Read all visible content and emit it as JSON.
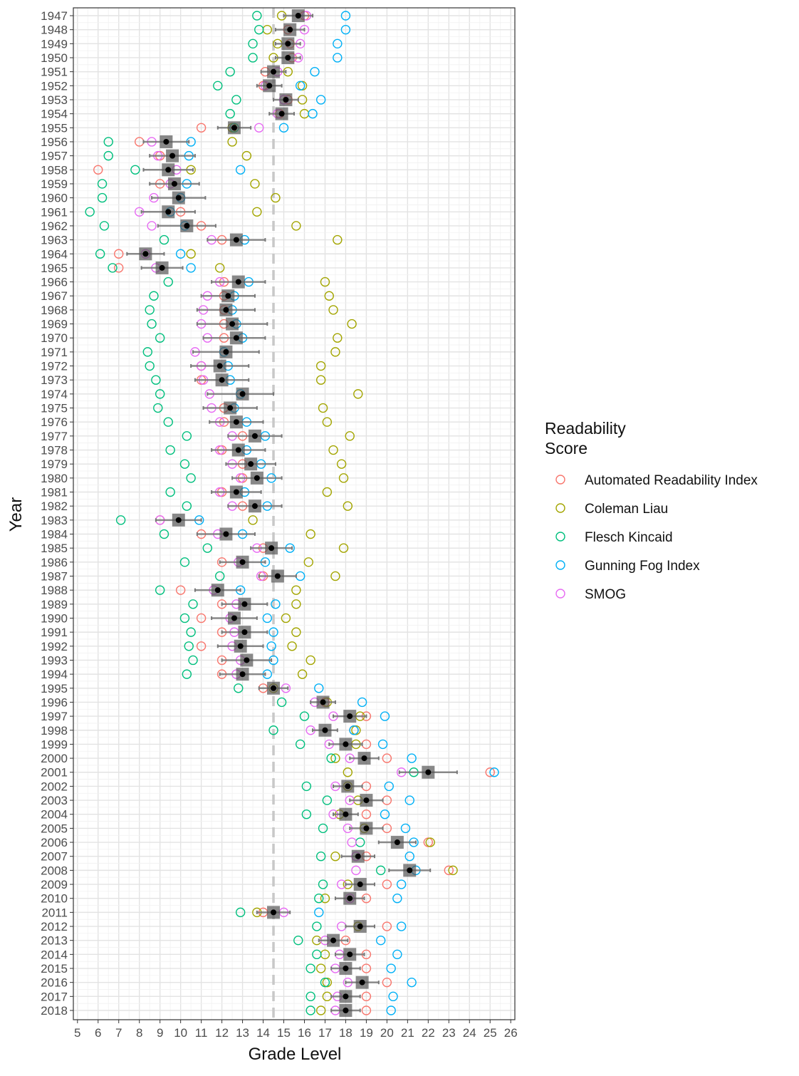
{
  "chart_data": {
    "type": "scatter",
    "xlabel": "Grade Level",
    "ylabel": "Year",
    "xlim": [
      4.8,
      26.2
    ],
    "x_ticks": [
      5,
      6,
      7,
      8,
      9,
      10,
      11,
      12,
      13,
      14,
      15,
      16,
      17,
      18,
      19,
      20,
      21,
      22,
      23,
      24,
      25,
      26
    ],
    "years": [
      1947,
      1948,
      1949,
      1950,
      1951,
      1952,
      1953,
      1954,
      1955,
      1956,
      1957,
      1958,
      1959,
      1960,
      1961,
      1962,
      1963,
      1964,
      1965,
      1966,
      1967,
      1968,
      1969,
      1970,
      1971,
      1972,
      1973,
      1974,
      1975,
      1976,
      1977,
      1978,
      1979,
      1980,
      1981,
      1982,
      1983,
      1984,
      1985,
      1986,
      1987,
      1988,
      1989,
      1990,
      1991,
      1992,
      1993,
      1994,
      1995,
      1996,
      1997,
      1998,
      1999,
      2000,
      2001,
      2002,
      2003,
      2004,
      2005,
      2006,
      2007,
      2008,
      2009,
      2010,
      2011,
      2012,
      2013,
      2014,
      2015,
      2016,
      2017,
      2018
    ],
    "reference_line": 14.5,
    "grid": true,
    "legend": {
      "title_lines": [
        "Readability",
        "Score"
      ],
      "placement": "right"
    },
    "series": [
      {
        "name": "Automated Readability Index",
        "color": "#F8766D",
        "values": [
          16.0,
          15.2,
          15.3,
          15.4,
          14.1,
          14.0,
          15.2,
          14.8,
          11.0,
          8.0,
          9.0,
          6.0,
          9.0,
          10.0,
          10.0,
          11.0,
          12.0,
          7.0,
          7.0,
          12.1,
          12.1,
          12.1,
          12.1,
          12.1,
          12.1,
          11.0,
          11.0,
          12.9,
          12.1,
          12.1,
          13.0,
          12.0,
          13.0,
          13.0,
          12.0,
          13.0,
          9.0,
          11.0,
          14.0,
          12.0,
          14.0,
          10.0,
          12.0,
          11.0,
          12.0,
          11.0,
          12.0,
          12.0,
          14.0,
          17.0,
          19.0,
          18.4,
          19.0,
          20.0,
          25.0,
          19.0,
          20.0,
          19.0,
          20.0,
          22.0,
          19.0,
          23.0,
          20.0,
          19.0,
          14.0,
          20.0,
          18.0,
          19.0,
          19.0,
          20.0,
          19.0,
          19.0
        ]
      },
      {
        "name": "Coleman Liau",
        "color": "#A3A500",
        "values": [
          14.9,
          14.2,
          14.7,
          14.5,
          15.2,
          15.9,
          15.9,
          16.0,
          12.5,
          12.5,
          13.2,
          10.5,
          13.6,
          14.6,
          13.7,
          15.6,
          17.6,
          10.5,
          11.9,
          17.0,
          17.2,
          17.4,
          18.3,
          17.6,
          17.5,
          16.8,
          16.8,
          18.6,
          16.9,
          17.1,
          18.2,
          17.4,
          17.8,
          17.9,
          17.1,
          18.1,
          13.5,
          16.3,
          17.9,
          16.2,
          17.5,
          15.6,
          15.6,
          15.1,
          15.6,
          15.4,
          16.3,
          15.9,
          14.5,
          17.1,
          18.7,
          18.5,
          18.5,
          17.5,
          18.1,
          18.1,
          18.6,
          17.7,
          18.9,
          22.1,
          17.5,
          23.2,
          18.1,
          17.0,
          13.7,
          18.6,
          16.6,
          17.0,
          16.8,
          17.1,
          17.1,
          16.8
        ]
      },
      {
        "name": "Flesch Kincaid",
        "color": "#00BF7D",
        "values": [
          13.7,
          13.8,
          13.5,
          13.5,
          12.4,
          11.8,
          12.7,
          12.4,
          12.6,
          6.5,
          6.5,
          7.8,
          6.2,
          6.2,
          5.6,
          6.3,
          9.2,
          6.1,
          6.7,
          9.4,
          8.7,
          8.5,
          8.6,
          9.0,
          8.4,
          8.5,
          8.8,
          9.0,
          8.9,
          9.4,
          10.3,
          9.5,
          10.2,
          10.5,
          9.5,
          10.3,
          7.1,
          9.2,
          11.3,
          10.2,
          11.9,
          9.0,
          10.6,
          10.2,
          10.5,
          10.4,
          10.6,
          10.3,
          12.8,
          14.9,
          16.0,
          14.5,
          15.8,
          17.3,
          21.3,
          16.1,
          17.1,
          16.1,
          16.9,
          18.7,
          16.8,
          19.7,
          16.9,
          16.7,
          12.9,
          16.6,
          15.7,
          16.6,
          16.3,
          17.0,
          16.3,
          16.3
        ]
      },
      {
        "name": "Gunning Fog Index",
        "color": "#00B0F6",
        "values": [
          18.0,
          18.0,
          17.6,
          17.6,
          16.5,
          15.8,
          16.8,
          16.4,
          15.0,
          10.5,
          10.4,
          12.9,
          10.3,
          10.0,
          9.5,
          10.2,
          13.1,
          10.0,
          10.5,
          13.3,
          12.6,
          12.5,
          12.7,
          13.0,
          12.1,
          12.3,
          12.4,
          12.9,
          12.6,
          13.2,
          14.1,
          13.2,
          13.9,
          14.4,
          13.1,
          14.2,
          10.9,
          13.0,
          15.3,
          14.1,
          15.8,
          12.9,
          14.6,
          14.2,
          14.5,
          14.4,
          14.5,
          14.2,
          16.7,
          18.8,
          19.9,
          18.4,
          19.8,
          21.2,
          25.2,
          20.1,
          21.1,
          19.9,
          20.9,
          21.3,
          21.1,
          21.4,
          20.7,
          20.5,
          16.7,
          20.7,
          19.7,
          20.5,
          20.2,
          21.2,
          20.3,
          20.2
        ]
      },
      {
        "name": "SMOG",
        "color": "#E76BF3",
        "values": [
          16.1,
          16.0,
          15.8,
          15.7,
          14.7,
          14.1,
          15.0,
          14.7,
          13.8,
          8.6,
          8.9,
          9.8,
          9.5,
          8.7,
          8.0,
          8.6,
          11.5,
          8.3,
          8.8,
          11.9,
          11.3,
          11.1,
          11.0,
          11.3,
          10.7,
          11.0,
          11.1,
          11.4,
          11.5,
          11.9,
          12.5,
          11.9,
          12.5,
          12.9,
          11.9,
          12.5,
          9.0,
          11.8,
          13.7,
          12.8,
          13.9,
          11.6,
          12.7,
          12.4,
          12.6,
          12.5,
          12.9,
          12.7,
          15.1,
          16.5,
          17.4,
          16.3,
          17.2,
          18.2,
          20.7,
          17.5,
          18.2,
          17.4,
          18.1,
          18.3,
          18.5,
          18.5,
          17.8,
          18.2,
          15.0,
          17.8,
          17.0,
          17.7,
          17.5,
          18.1,
          17.6,
          17.5
        ]
      }
    ],
    "mean": [
      15.7,
      15.3,
      15.2,
      15.2,
      14.5,
      14.3,
      15.1,
      14.9,
      12.6,
      9.3,
      9.6,
      9.4,
      9.7,
      9.9,
      9.4,
      10.3,
      12.7,
      8.3,
      9.1,
      12.8,
      12.3,
      12.2,
      12.5,
      12.7,
      12.2,
      11.9,
      12.0,
      13.0,
      12.4,
      12.7,
      13.6,
      12.8,
      13.4,
      13.7,
      12.7,
      13.6,
      9.9,
      12.2,
      14.4,
      13.0,
      14.7,
      11.8,
      13.1,
      12.6,
      13.1,
      12.9,
      13.2,
      13.0,
      14.5,
      16.9,
      18.2,
      17.0,
      18.0,
      18.9,
      22.0,
      18.1,
      19.0,
      18.0,
      19.0,
      20.5,
      18.6,
      21.1,
      18.7,
      18.2,
      14.5,
      18.7,
      17.4,
      18.2,
      18.0,
      18.8,
      18.0,
      18.0
    ],
    "error_range": [
      [
        15.0,
        16.4
      ],
      [
        14.6,
        16.0
      ],
      [
        14.6,
        15.8
      ],
      [
        14.6,
        15.8
      ],
      [
        13.9,
        15.1
      ],
      [
        13.7,
        14.9
      ],
      [
        14.5,
        15.7
      ],
      [
        14.3,
        15.5
      ],
      [
        11.8,
        13.4
      ],
      [
        8.2,
        10.4
      ],
      [
        8.5,
        10.7
      ],
      [
        8.2,
        10.6
      ],
      [
        8.5,
        10.9
      ],
      [
        8.6,
        11.2
      ],
      [
        8.1,
        10.7
      ],
      [
        8.9,
        11.7
      ],
      [
        11.3,
        14.1
      ],
      [
        7.4,
        9.2
      ],
      [
        8.1,
        10.1
      ],
      [
        11.5,
        14.1
      ],
      [
        11.0,
        13.6
      ],
      [
        10.8,
        13.6
      ],
      [
        10.8,
        14.2
      ],
      [
        11.1,
        14.1
      ],
      [
        10.6,
        13.8
      ],
      [
        10.5,
        13.3
      ],
      [
        10.7,
        13.3
      ],
      [
        11.3,
        14.5
      ],
      [
        11.1,
        13.7
      ],
      [
        11.4,
        14.0
      ],
      [
        12.3,
        14.9
      ],
      [
        11.5,
        14.1
      ],
      [
        12.2,
        14.6
      ],
      [
        12.5,
        14.9
      ],
      [
        11.5,
        13.9
      ],
      [
        12.3,
        14.9
      ],
      [
        8.8,
        11.0
      ],
      [
        10.8,
        13.6
      ],
      [
        13.4,
        15.4
      ],
      [
        11.9,
        14.1
      ],
      [
        13.8,
        15.6
      ],
      [
        10.7,
        12.9
      ],
      [
        12.0,
        14.2
      ],
      [
        11.5,
        13.7
      ],
      [
        12.0,
        14.2
      ],
      [
        11.8,
        14.0
      ],
      [
        12.0,
        14.4
      ],
      [
        11.9,
        14.1
      ],
      [
        13.8,
        15.2
      ],
      [
        16.3,
        17.5
      ],
      [
        17.4,
        19.0
      ],
      [
        16.4,
        17.6
      ],
      [
        17.2,
        18.8
      ],
      [
        18.2,
        19.6
      ],
      [
        20.6,
        23.4
      ],
      [
        17.4,
        18.8
      ],
      [
        18.2,
        19.8
      ],
      [
        17.4,
        18.6
      ],
      [
        18.2,
        19.8
      ],
      [
        19.6,
        21.4
      ],
      [
        17.8,
        19.4
      ],
      [
        20.1,
        22.1
      ],
      [
        18.0,
        19.4
      ],
      [
        17.5,
        18.9
      ],
      [
        13.7,
        15.3
      ],
      [
        18.0,
        19.4
      ],
      [
        16.7,
        18.1
      ],
      [
        17.5,
        18.9
      ],
      [
        17.3,
        18.7
      ],
      [
        18.0,
        19.6
      ],
      [
        17.3,
        18.7
      ],
      [
        17.3,
        18.7
      ]
    ]
  }
}
